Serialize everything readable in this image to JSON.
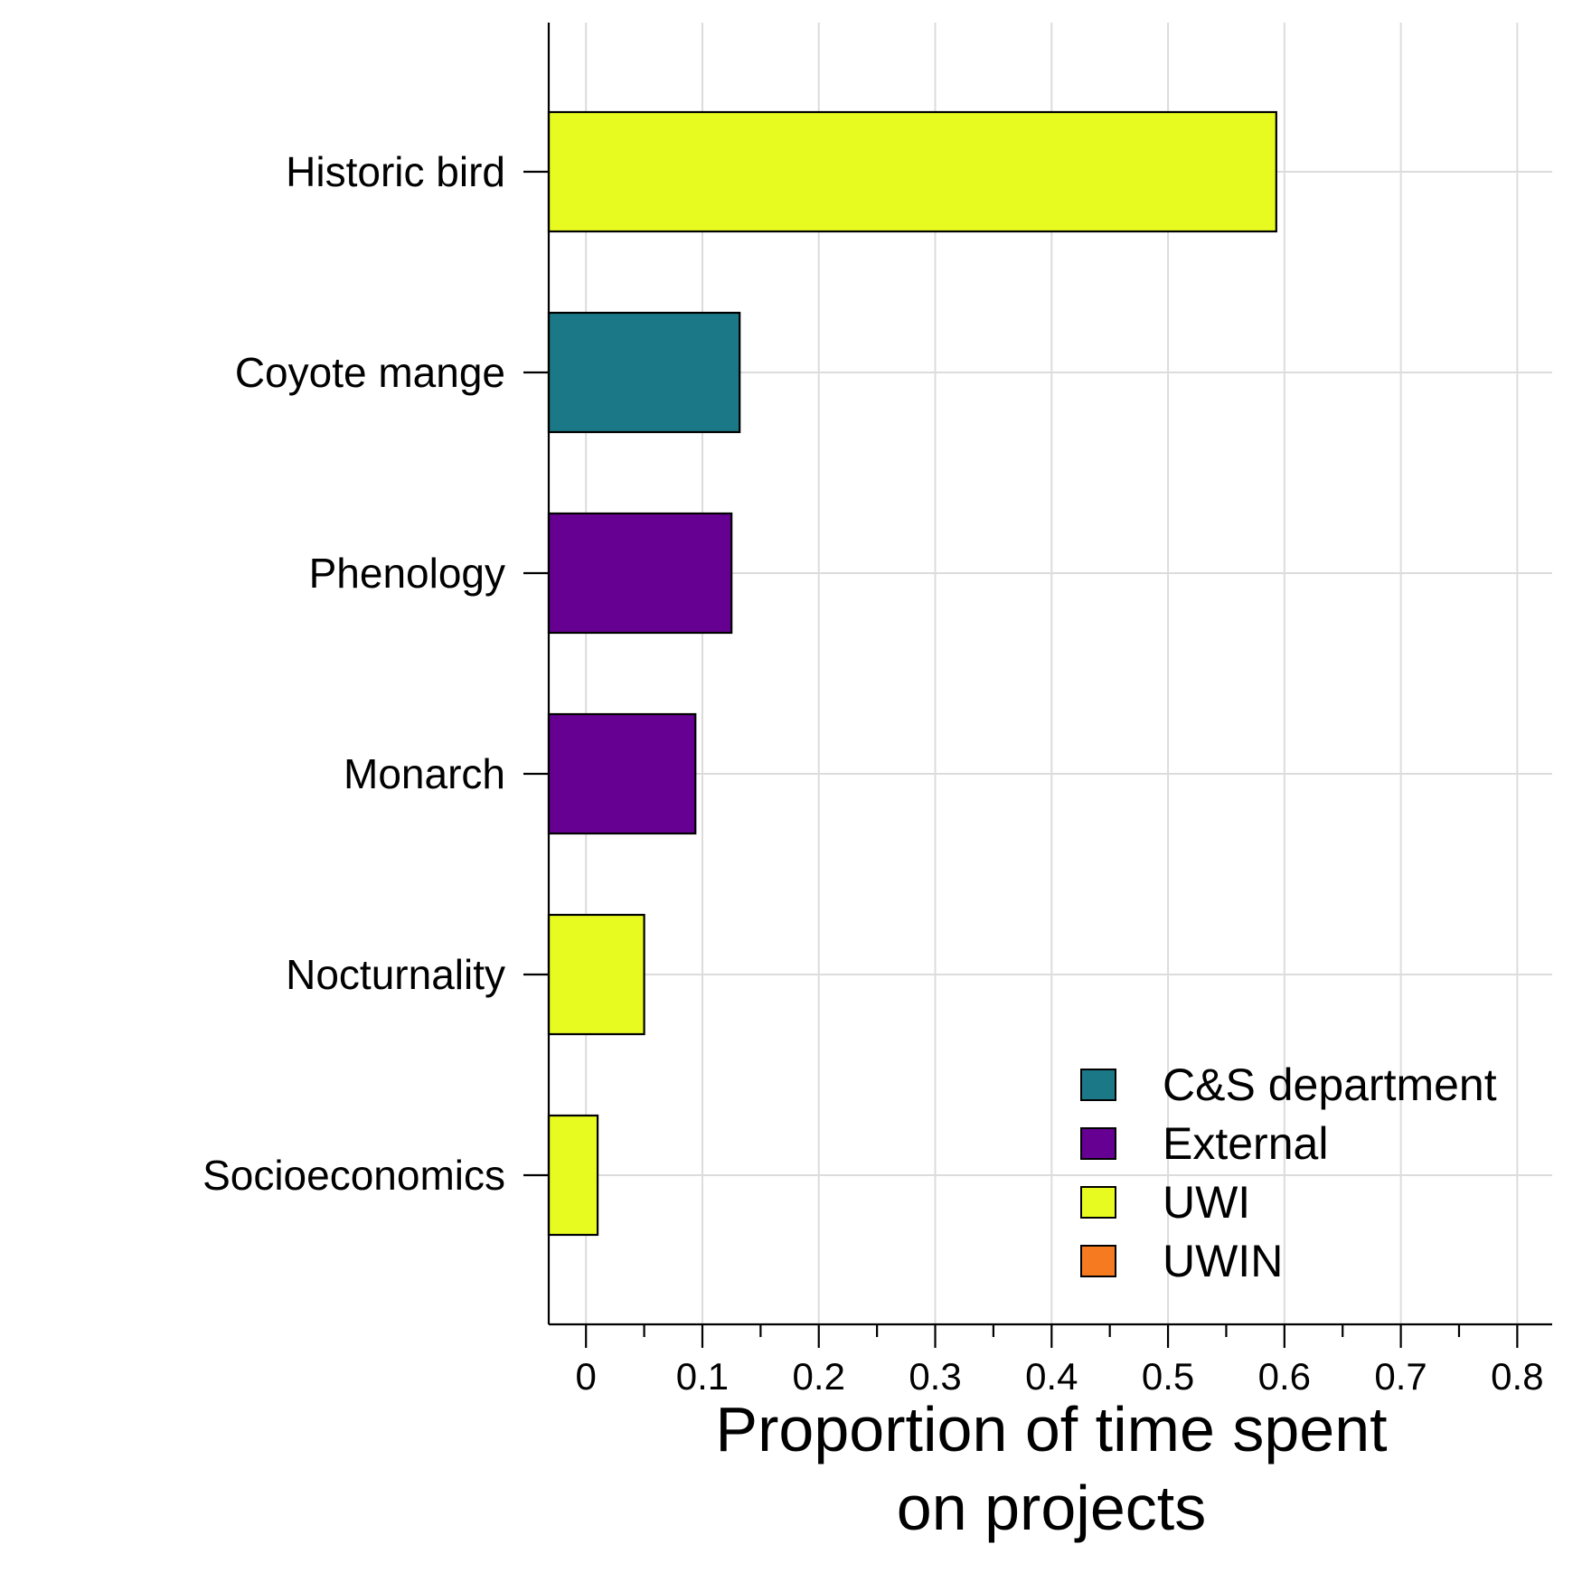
{
  "chart_data": {
    "type": "bar",
    "orientation": "horizontal",
    "categories": [
      "Historic bird",
      "Coyote mange",
      "Phenology",
      "Monarch",
      "Nocturnality",
      "Socioeconomics"
    ],
    "values": [
      0.593,
      0.132,
      0.125,
      0.094,
      0.05,
      0.01
    ],
    "groups": [
      "UWI",
      "C&S department",
      "External",
      "External",
      "UWI",
      "UWI"
    ],
    "xlabel_lines": [
      "Proportion of time spent",
      "on projects"
    ],
    "ylabel": "",
    "xlim": [
      -0.032,
      0.83
    ],
    "xticks": [
      0,
      0.1,
      0.2,
      0.3,
      0.4,
      0.5,
      0.6,
      0.7,
      0.8
    ],
    "xtick_labels": [
      "0",
      "0.1",
      "0.2",
      "0.3",
      "0.4",
      "0.5",
      "0.6",
      "0.7",
      "0.8"
    ],
    "minor_xticks": [
      0.05,
      0.15,
      0.25,
      0.35,
      0.45,
      0.55,
      0.65,
      0.75
    ],
    "grid": true,
    "legend_position": "bottom-right",
    "legend": [
      {
        "name": "C&S department",
        "color": "#1b7886"
      },
      {
        "name": "External",
        "color": "#660092"
      },
      {
        "name": "UWI",
        "color": "#e8fb20"
      },
      {
        "name": "UWIN",
        "color": "#f57a20"
      }
    ]
  }
}
